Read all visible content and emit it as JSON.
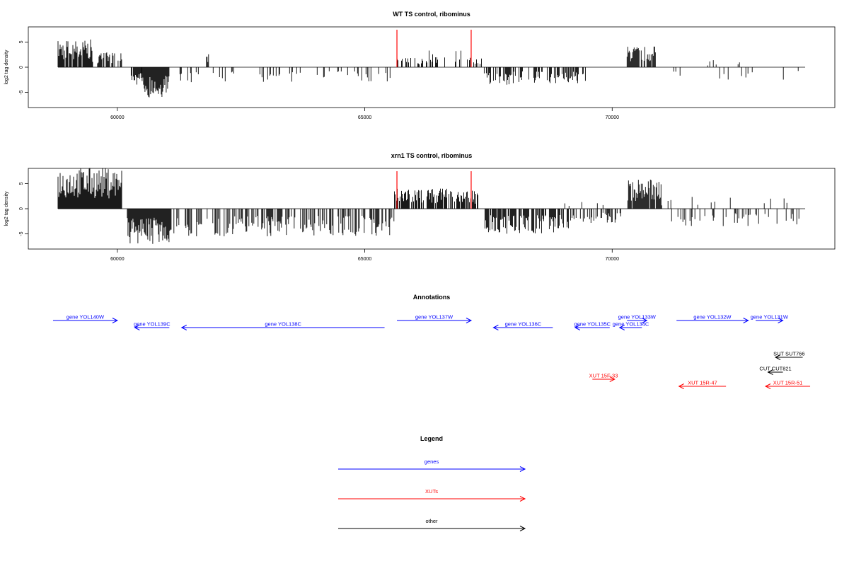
{
  "colors": {
    "genes": "#0000ff",
    "xuts": "#ff0000",
    "other": "#000000",
    "marker": "#ff0000"
  },
  "chart_data": [
    {
      "type": "bar",
      "title": "WT TS control, ribominus",
      "ylabel": "log2 tag density",
      "xlim": [
        58200,
        74500
      ],
      "ylim": [
        -8,
        8
      ],
      "xticks": [
        60000,
        65000,
        70000
      ],
      "yticks": [
        -5,
        0,
        5
      ],
      "baseline": [
        58800,
        73900
      ],
      "markers": [
        65650,
        67150
      ],
      "plus_clusters": [
        {
          "range": [
            58800,
            59500
          ],
          "density": 0.9,
          "max": 5.5
        },
        {
          "range": [
            59500,
            60100
          ],
          "density": 0.6,
          "max": 3.0
        },
        {
          "range": [
            61800,
            61850
          ],
          "density": 1.0,
          "max": 2.6
        },
        {
          "range": [
            65600,
            66300
          ],
          "density": 0.4,
          "max": 2.2
        },
        {
          "range": [
            66300,
            67000
          ],
          "density": 0.4,
          "max": 3.5
        },
        {
          "range": [
            67000,
            67400
          ],
          "density": 0.3,
          "max": 2.0
        },
        {
          "range": [
            70300,
            70900
          ],
          "density": 0.8,
          "max": 4.2
        },
        {
          "range": [
            71700,
            72800
          ],
          "density": 0.06,
          "max": 1.4
        }
      ],
      "minus_clusters": [
        {
          "range": [
            60250,
            60500
          ],
          "density": 0.7,
          "max": 3.8
        },
        {
          "range": [
            60500,
            61050
          ],
          "density": 1.0,
          "max": 6.0
        },
        {
          "range": [
            61050,
            65600
          ],
          "density": 0.12,
          "max": 3.0
        },
        {
          "range": [
            67400,
            68000
          ],
          "density": 0.7,
          "max": 3.5
        },
        {
          "range": [
            68000,
            69500
          ],
          "density": 0.5,
          "max": 3.2
        },
        {
          "range": [
            70900,
            73800
          ],
          "density": 0.03,
          "max": 2.5
        }
      ]
    },
    {
      "type": "bar",
      "title": "xrn1 TS control, ribominus",
      "ylabel": "log2 tag density",
      "xlim": [
        58200,
        74500
      ],
      "ylim": [
        -8,
        8
      ],
      "xticks": [
        60000,
        65000,
        70000
      ],
      "yticks": [
        -5,
        0,
        5
      ],
      "baseline": [
        58800,
        73900
      ],
      "markers": [
        65650,
        67150
      ],
      "plus_clusters": [
        {
          "range": [
            58800,
            60100
          ],
          "density": 1.0,
          "max": 8.2
        },
        {
          "range": [
            65600,
            67300
          ],
          "density": 0.8,
          "max": 4.0
        },
        {
          "range": [
            69000,
            70200
          ],
          "density": 0.05,
          "max": 1.5
        },
        {
          "range": [
            70300,
            71000
          ],
          "density": 0.9,
          "max": 6.0
        },
        {
          "range": [
            71000,
            73800
          ],
          "density": 0.08,
          "max": 2.5
        }
      ],
      "minus_clusters": [
        {
          "range": [
            60200,
            61100
          ],
          "density": 1.0,
          "max": 7.0
        },
        {
          "range": [
            61100,
            65600
          ],
          "density": 0.5,
          "max": 5.5
        },
        {
          "range": [
            67400,
            69200
          ],
          "density": 0.7,
          "max": 5.0
        },
        {
          "range": [
            69200,
            70200
          ],
          "density": 0.3,
          "max": 3.0
        },
        {
          "range": [
            71000,
            73900
          ],
          "density": 0.2,
          "max": 3.5
        }
      ]
    }
  ],
  "annotations": {
    "title": "Annotations",
    "features": [
      {
        "label": "gene YOL140W",
        "type": "genes",
        "start": 58700,
        "end": 60000,
        "strand": "+",
        "row": 0
      },
      {
        "label": "gene YOL139C",
        "type": "genes",
        "start": 60350,
        "end": 61050,
        "strand": "-",
        "row": 1
      },
      {
        "label": "gene YOL138C",
        "type": "genes",
        "start": 61300,
        "end": 65400,
        "strand": "-",
        "row": 1
      },
      {
        "label": "gene YOL137W",
        "type": "genes",
        "start": 65650,
        "end": 67150,
        "strand": "+",
        "row": 0
      },
      {
        "label": "gene YOL136C",
        "type": "genes",
        "start": 67600,
        "end": 68800,
        "strand": "-",
        "row": 1
      },
      {
        "label": "gene YOL135C",
        "type": "genes",
        "start": 69250,
        "end": 69950,
        "strand": "-",
        "row": 1
      },
      {
        "label": "gene YOL134C",
        "type": "genes",
        "start": 70150,
        "end": 70600,
        "strand": "-",
        "row": 1
      },
      {
        "label": "gene YOL133W",
        "type": "genes",
        "start": 70300,
        "end": 70700,
        "strand": "+",
        "row": 0
      },
      {
        "label": "gene YOL132W",
        "type": "genes",
        "start": 71300,
        "end": 72750,
        "strand": "+",
        "row": 0
      },
      {
        "label": "gene YOL131W",
        "type": "genes",
        "start": 72900,
        "end": 73450,
        "strand": "+",
        "row": 0
      },
      {
        "label": "SUT SUT766",
        "type": "other",
        "start": 73300,
        "end": 73850,
        "strand": "-",
        "row": 4
      },
      {
        "label": "CUT CUT821",
        "type": "other",
        "start": 73150,
        "end": 73450,
        "strand": "-",
        "row": 5
      },
      {
        "label": "XUT 15F-33",
        "type": "xuts",
        "start": 69600,
        "end": 70050,
        "strand": "+",
        "row": 6
      },
      {
        "label": "XUT 15R-47",
        "type": "xuts",
        "start": 71350,
        "end": 72300,
        "strand": "-",
        "row": 7
      },
      {
        "label": "XUT 15R-51",
        "type": "xuts",
        "start": 73100,
        "end": 74000,
        "strand": "-",
        "row": 7
      }
    ]
  },
  "legend": {
    "title": "Legend",
    "items": [
      {
        "label": "genes",
        "type": "genes"
      },
      {
        "label": "XUTs",
        "type": "xuts"
      },
      {
        "label": "other",
        "type": "other"
      }
    ]
  }
}
